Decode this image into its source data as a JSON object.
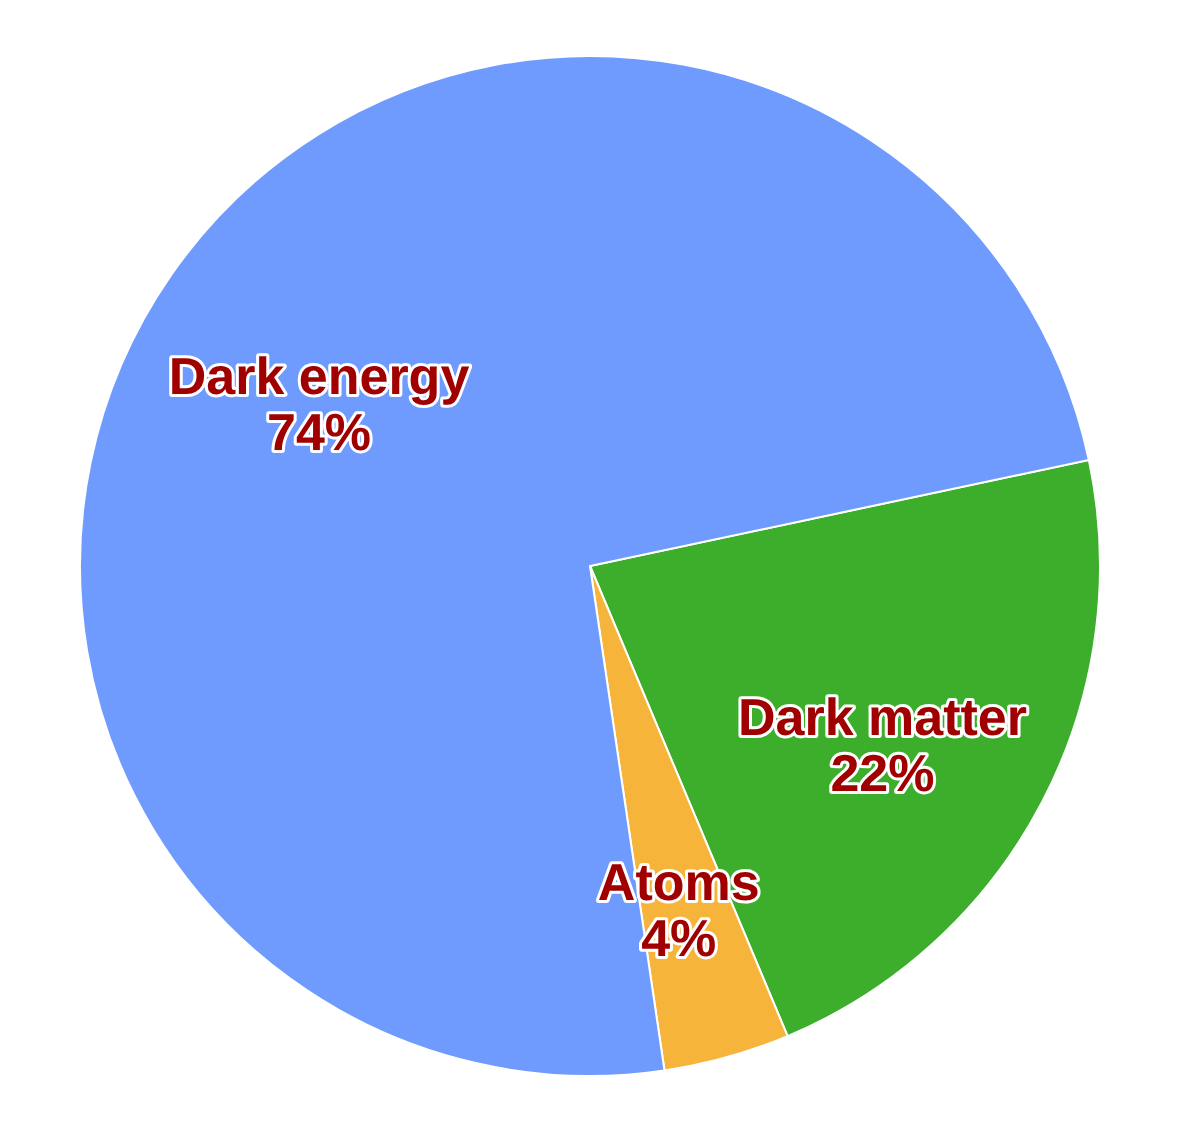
{
  "chart_data": {
    "type": "pie",
    "categories": [
      "Dark matter",
      "Atoms",
      "Dark energy"
    ],
    "values": [
      22,
      4,
      74
    ],
    "colors": [
      "#3cae2c",
      "#f7b43a",
      "#6f9bff"
    ],
    "value_labels": [
      "22%",
      "4%",
      "74%"
    ],
    "legend": false
  }
}
